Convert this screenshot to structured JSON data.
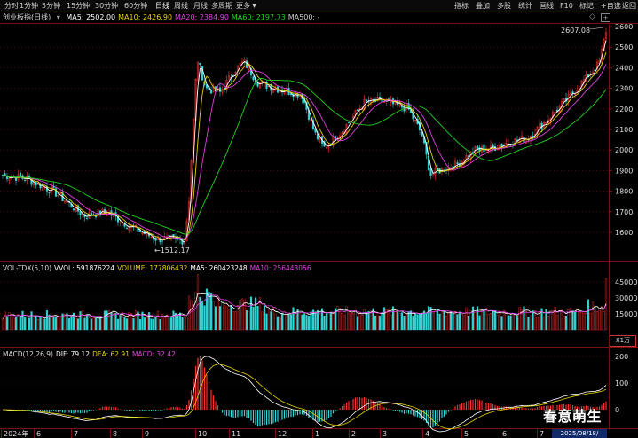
{
  "toolbar": {
    "periods": [
      "分时",
      "1分钟",
      "5分钟",
      "15分钟",
      "30分钟",
      "60分钟",
      "日线",
      "周线",
      "月线",
      "多周期",
      "更多"
    ],
    "active_period": "日线",
    "more_suffix": "▾",
    "right": [
      "指标",
      "叠加",
      "多股",
      "统计",
      "画线",
      "F10",
      "标记",
      "+自选",
      "返回"
    ]
  },
  "stock": {
    "name": "创业板指(日线)",
    "mas": [
      {
        "label": "MA5:",
        "value": "2502.00",
        "color": "#ffffff"
      },
      {
        "label": "MA10:",
        "value": "2426.90",
        "color": "#e6d200"
      },
      {
        "label": "MA20:",
        "value": "2384.90",
        "color": "#e040e0"
      },
      {
        "label": "MA60:",
        "value": "2197.73",
        "color": "#20d020"
      },
      {
        "label": "MA500:",
        "value": "-",
        "color": "#c8c8c8"
      }
    ],
    "price_axis": [
      "2600",
      "2500",
      "2400",
      "2300",
      "2200",
      "2100",
      "2000",
      "1900",
      "1800",
      "1700",
      "1600"
    ],
    "high_label": "2607.08",
    "low_label": "←1512.17"
  },
  "volume": {
    "title": "VOL-TDX(5,10)",
    "items": [
      {
        "label": "VVOL:",
        "value": "591876224",
        "color": "#ffffff"
      },
      {
        "label": "VOLUME:",
        "value": "177806432",
        "color": "#e6d200"
      },
      {
        "label": "MA5:",
        "value": "260423248",
        "color": "#ffffff"
      },
      {
        "label": "MA10:",
        "value": "256443056",
        "color": "#e040e0"
      }
    ],
    "axis": [
      "45000",
      "30000",
      "15000"
    ],
    "unit": "X1万"
  },
  "macd": {
    "title": "MACD(12,26,9)",
    "items": [
      {
        "label": "DIF:",
        "value": "79.12",
        "color": "#ffffff"
      },
      {
        "label": "DEA:",
        "value": "62.91",
        "color": "#e6d200"
      },
      {
        "label": "MACD:",
        "value": "32.42",
        "color": "#e040e0"
      }
    ],
    "axis": [
      "200",
      "100",
      "0"
    ]
  },
  "x_axis": [
    "2024年",
    "6",
    "7",
    "8",
    "9",
    "10",
    "11",
    "12",
    "1",
    "2",
    "3",
    "4",
    "5",
    "6",
    "7"
  ],
  "date_box": "2025/08/18/",
  "watermark": "春意萌生",
  "colors": {
    "up": "#ff3030",
    "down": "#30d8d8",
    "ma5": "#ffffff",
    "ma10": "#e6d200",
    "ma20": "#e040e0",
    "ma60": "#20d020",
    "grid": "#7a1010"
  }
}
